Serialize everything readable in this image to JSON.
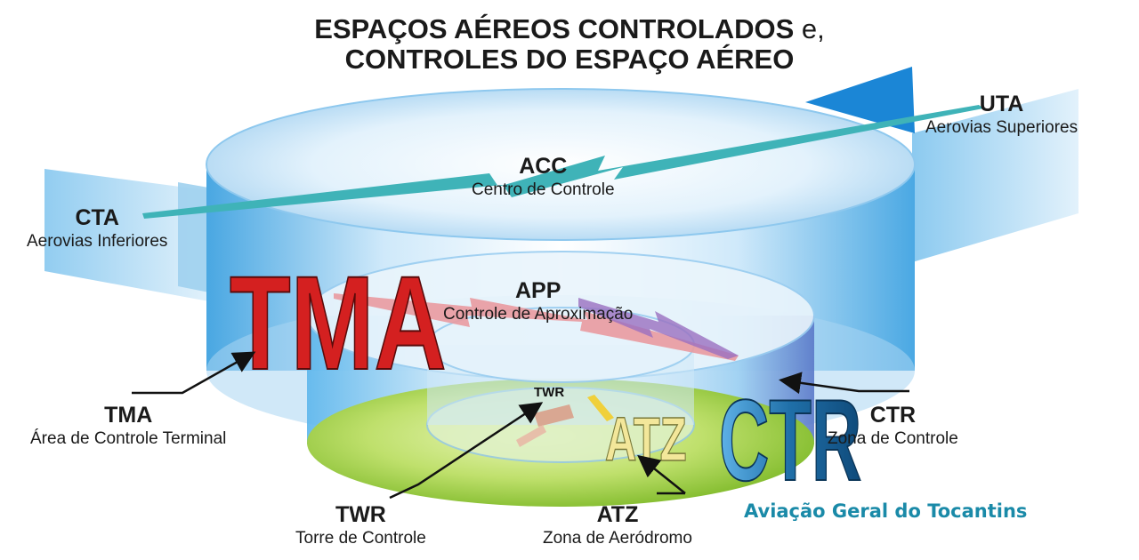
{
  "title": {
    "line1_main": "ESPAÇOS AÉREOS CONTROLADOS",
    "line1_suffix": " e,",
    "line2": "CONTROLES DO ESPAÇO AÉREO"
  },
  "labels": {
    "uta": {
      "abbr": "UTA",
      "desc": "Aerovias Superiores"
    },
    "acc": {
      "abbr": "ACC",
      "desc": "Centro de Controle"
    },
    "cta": {
      "abbr": "CTA",
      "desc": "Aerovias Inferiores"
    },
    "app": {
      "abbr": "APP",
      "desc": "Controle de Aproximação"
    },
    "tma": {
      "abbr": "TMA",
      "desc": "Área de Controle Terminal"
    },
    "ctr": {
      "abbr": "CTR",
      "desc": "Zona de Controle"
    },
    "twr": {
      "abbr": "TWR",
      "desc": "Torre de Controle"
    },
    "atz": {
      "abbr": "ATZ",
      "desc": "Zona de Aeródromo"
    }
  },
  "big_letters": {
    "tma": "TMA",
    "ctr": "CTR",
    "atz": "ATZ",
    "twr_small": "TWR"
  },
  "credit": "Aviação Geral do Tocantins",
  "colors": {
    "tma_red": "#d42020",
    "ctr_blue": "#1f6fa8",
    "atz_yellow": "#f3e79a",
    "credit_teal": "#1a8aa8",
    "sky_blue": "#5fb8ea",
    "ground_green": "#9fcf3a"
  }
}
